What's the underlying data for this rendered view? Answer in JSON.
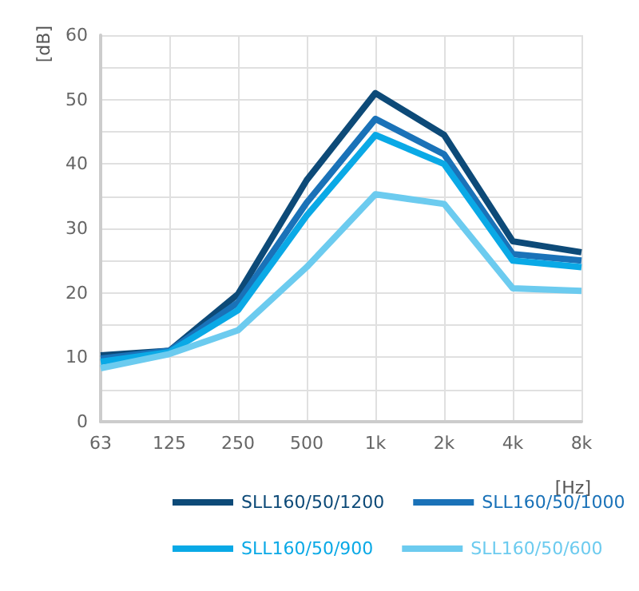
{
  "chart_data": {
    "type": "line",
    "xlabel": "[Hz]",
    "ylabel": "[dB]",
    "categories": [
      "63",
      "125",
      "250",
      "500",
      "1k",
      "2k",
      "4k",
      "8k"
    ],
    "series": [
      {
        "name": "SLL160/50/1200",
        "color": "#0d4a78",
        "values": [
          10.3,
          11,
          19.8,
          37.5,
          51,
          44.5,
          28,
          26.3
        ]
      },
      {
        "name": "SLL160/50/1000",
        "color": "#1a72b8",
        "values": [
          9.8,
          11,
          18.5,
          34,
          47,
          41.5,
          26,
          25
        ]
      },
      {
        "name": "SLL160/50/900",
        "color": "#0aa9e6",
        "values": [
          9.3,
          10.8,
          17.3,
          32,
          44.5,
          40,
          25,
          24
        ]
      },
      {
        "name": "SLL160/50/600",
        "color": "#6ccbef",
        "values": [
          8.3,
          10.5,
          14.2,
          24,
          35.3,
          33.8,
          20.7,
          20.3
        ]
      }
    ],
    "ylim": [
      0,
      60
    ],
    "yticks": [
      0,
      {
        "value": 5,
        "label": null
      },
      10,
      {
        "value": 15,
        "label": null
      },
      20,
      {
        "value": 25,
        "label": null
      },
      30,
      {
        "value": 35,
        "label": null
      },
      40,
      {
        "value": 45,
        "label": null
      },
      50,
      {
        "value": 55,
        "label": null
      },
      60
    ],
    "grid": true,
    "legend": "bottom",
    "marker": "none",
    "line_style": "solid"
  }
}
